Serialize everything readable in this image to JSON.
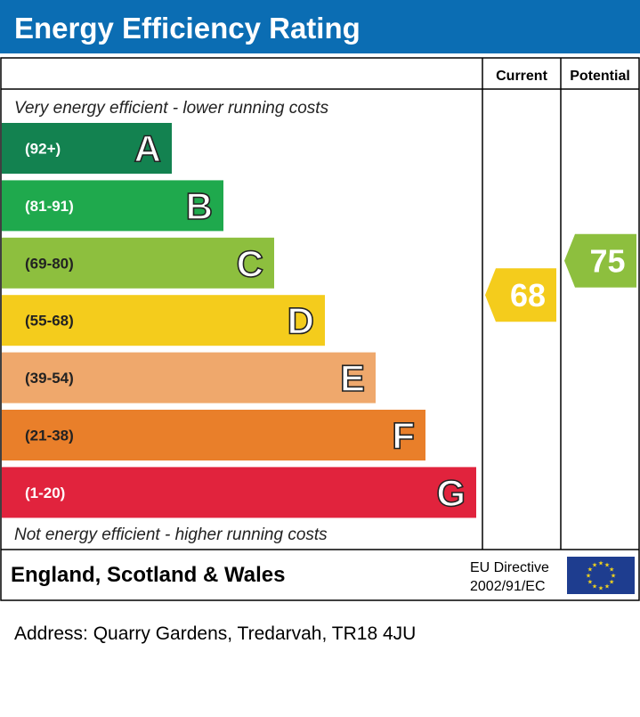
{
  "header": {
    "title": "Energy Efficiency Rating"
  },
  "columns": {
    "current": "Current",
    "potential": "Potential"
  },
  "notes": {
    "top": "Very energy efficient - lower running costs",
    "bottom": "Not energy efficient - higher running costs"
  },
  "footer": {
    "region": "England, Scotland & Wales",
    "directive_line1": "EU Directive",
    "directive_line2": "2002/91/EC"
  },
  "address": "Address: Quarry Gardens, Tredarvah, TR18 4JU",
  "colors": {
    "header_bg": "#0b6db3",
    "eu_flag": "#1e3d8f",
    "eu_stars": "#f4d51b"
  },
  "chart_data": {
    "type": "bar",
    "title": "Energy Efficiency Rating",
    "bands": [
      {
        "letter": "A",
        "range": "(92+)",
        "min": 92,
        "max": 100,
        "color": "#138250"
      },
      {
        "letter": "B",
        "range": "(81-91)",
        "min": 81,
        "max": 91,
        "color": "#1fa94d"
      },
      {
        "letter": "C",
        "range": "(69-80)",
        "min": 69,
        "max": 80,
        "color": "#8dbf3e"
      },
      {
        "letter": "D",
        "range": "(55-68)",
        "min": 55,
        "max": 68,
        "color": "#f4cc1c"
      },
      {
        "letter": "E",
        "range": "(39-54)",
        "min": 39,
        "max": 54,
        "color": "#efa86c"
      },
      {
        "letter": "F",
        "range": "(21-38)",
        "min": 21,
        "max": 38,
        "color": "#e97f2a"
      },
      {
        "letter": "G",
        "range": "(1-20)",
        "min": 1,
        "max": 20,
        "color": "#e1233d"
      }
    ],
    "current": {
      "value": 68,
      "band": "D",
      "color": "#f4cc1c"
    },
    "potential": {
      "value": 75,
      "band": "C",
      "color": "#8dbf3e"
    }
  }
}
